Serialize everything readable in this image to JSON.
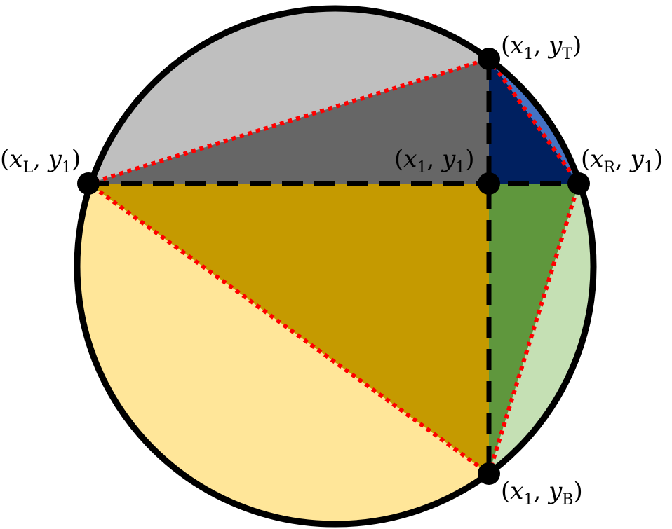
{
  "labels": {
    "top": {
      "open": "(",
      "x": "x",
      "xsub": "1",
      "comma": ", ",
      "y": "y",
      "ysub": "T",
      "close": ")"
    },
    "left": {
      "open": "(",
      "x": "x",
      "xsub": "L",
      "comma": ", ",
      "y": "y",
      "ysub": "1",
      "close": ")"
    },
    "center": {
      "open": "(",
      "x": "x",
      "xsub": "1",
      "comma": ", ",
      "y": "y",
      "ysub": "1",
      "close": ")"
    },
    "right": {
      "open": "(",
      "x": "x",
      "xsub": "R",
      "comma": ", ",
      "y": "y",
      "ysub": "1",
      "close": ")"
    },
    "bottom": {
      "open": "(",
      "x": "x",
      "xsub": "1",
      "comma": ", ",
      "y": "y",
      "ysub": "B",
      "close": ")"
    }
  },
  "colors": {
    "circle_outline": "#000000",
    "top_left_segment": "#bfbfbf",
    "top_left_triangle": "#666666",
    "top_right_segment": "#4472c4",
    "top_right_triangle": "#002060",
    "bottom_left_segment": "#ffe699",
    "bottom_left_triangle": "#c59a00",
    "bottom_right_segment": "#c5e0b4",
    "bottom_right_triangle": "#5f973d",
    "chord_dotted": "#ff0000",
    "axis_dashed": "#000000",
    "points": "#000000"
  }
}
